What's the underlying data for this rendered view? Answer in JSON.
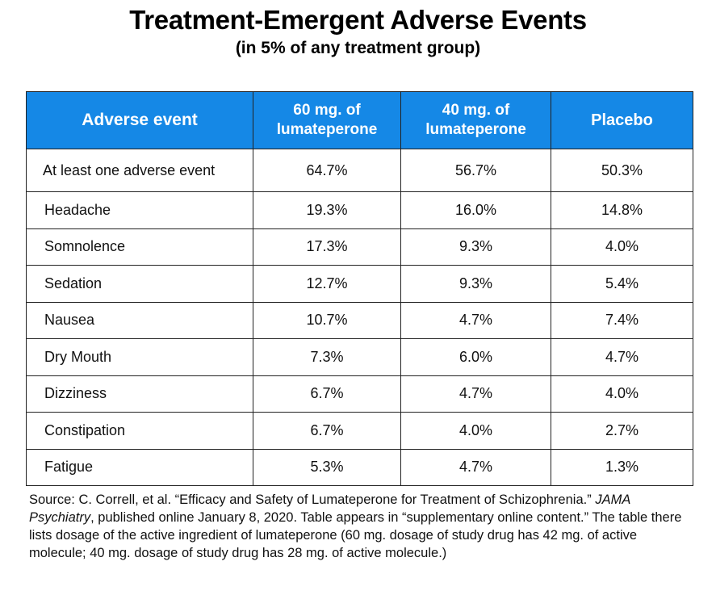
{
  "title": "Treatment-Emergent Adverse Events",
  "subtitle": "(in 5% of any treatment group)",
  "table": {
    "headers": {
      "event": "Adverse event",
      "col60_line1": "60 mg. of",
      "col60_line2": "lumateperone",
      "col40_line1": "40 mg. of",
      "col40_line2": "lumateperone",
      "placebo": "Placebo"
    },
    "rows": [
      {
        "event": "At least one adverse event",
        "mg60": "64.7%",
        "mg40": "56.7%",
        "placebo": "50.3%"
      },
      {
        "event": "Headache",
        "mg60": "19.3%",
        "mg40": "16.0%",
        "placebo": "14.8%"
      },
      {
        "event": "Somnolence",
        "mg60": "17.3%",
        "mg40": "9.3%",
        "placebo": "4.0%"
      },
      {
        "event": "Sedation",
        "mg60": "12.7%",
        "mg40": "9.3%",
        "placebo": "5.4%"
      },
      {
        "event": "Nausea",
        "mg60": "10.7%",
        "mg40": "4.7%",
        "placebo": "7.4%"
      },
      {
        "event": "Dry Mouth",
        "mg60": "7.3%",
        "mg40": "6.0%",
        "placebo": "4.7%"
      },
      {
        "event": "Dizziness",
        "mg60": "6.7%",
        "mg40": "4.7%",
        "placebo": "4.0%"
      },
      {
        "event": "Constipation",
        "mg60": "6.7%",
        "mg40": "4.0%",
        "placebo": "2.7%"
      },
      {
        "event": "Fatigue",
        "mg60": "5.3%",
        "mg40": "4.7%",
        "placebo": "1.3%"
      }
    ]
  },
  "source": {
    "part1": "Source:  C. Correll, et al. “Efficacy and Safety of Lumateperone for Treatment of Schizophrenia.”",
    "journal": "JAMA Psychiatry",
    "part2": ", published online January 8, 2020. Table appears in “supplementary online content.” The table there lists dosage of the active ingredient of lumateperone (60 mg. dosage of study drug has 42 mg. of active molecule; 40 mg. dosage of study drug has 28 mg. of active molecule.)"
  },
  "colors": {
    "header_bg": "#1588e6",
    "header_text": "#ffffff",
    "border": "#222222"
  }
}
